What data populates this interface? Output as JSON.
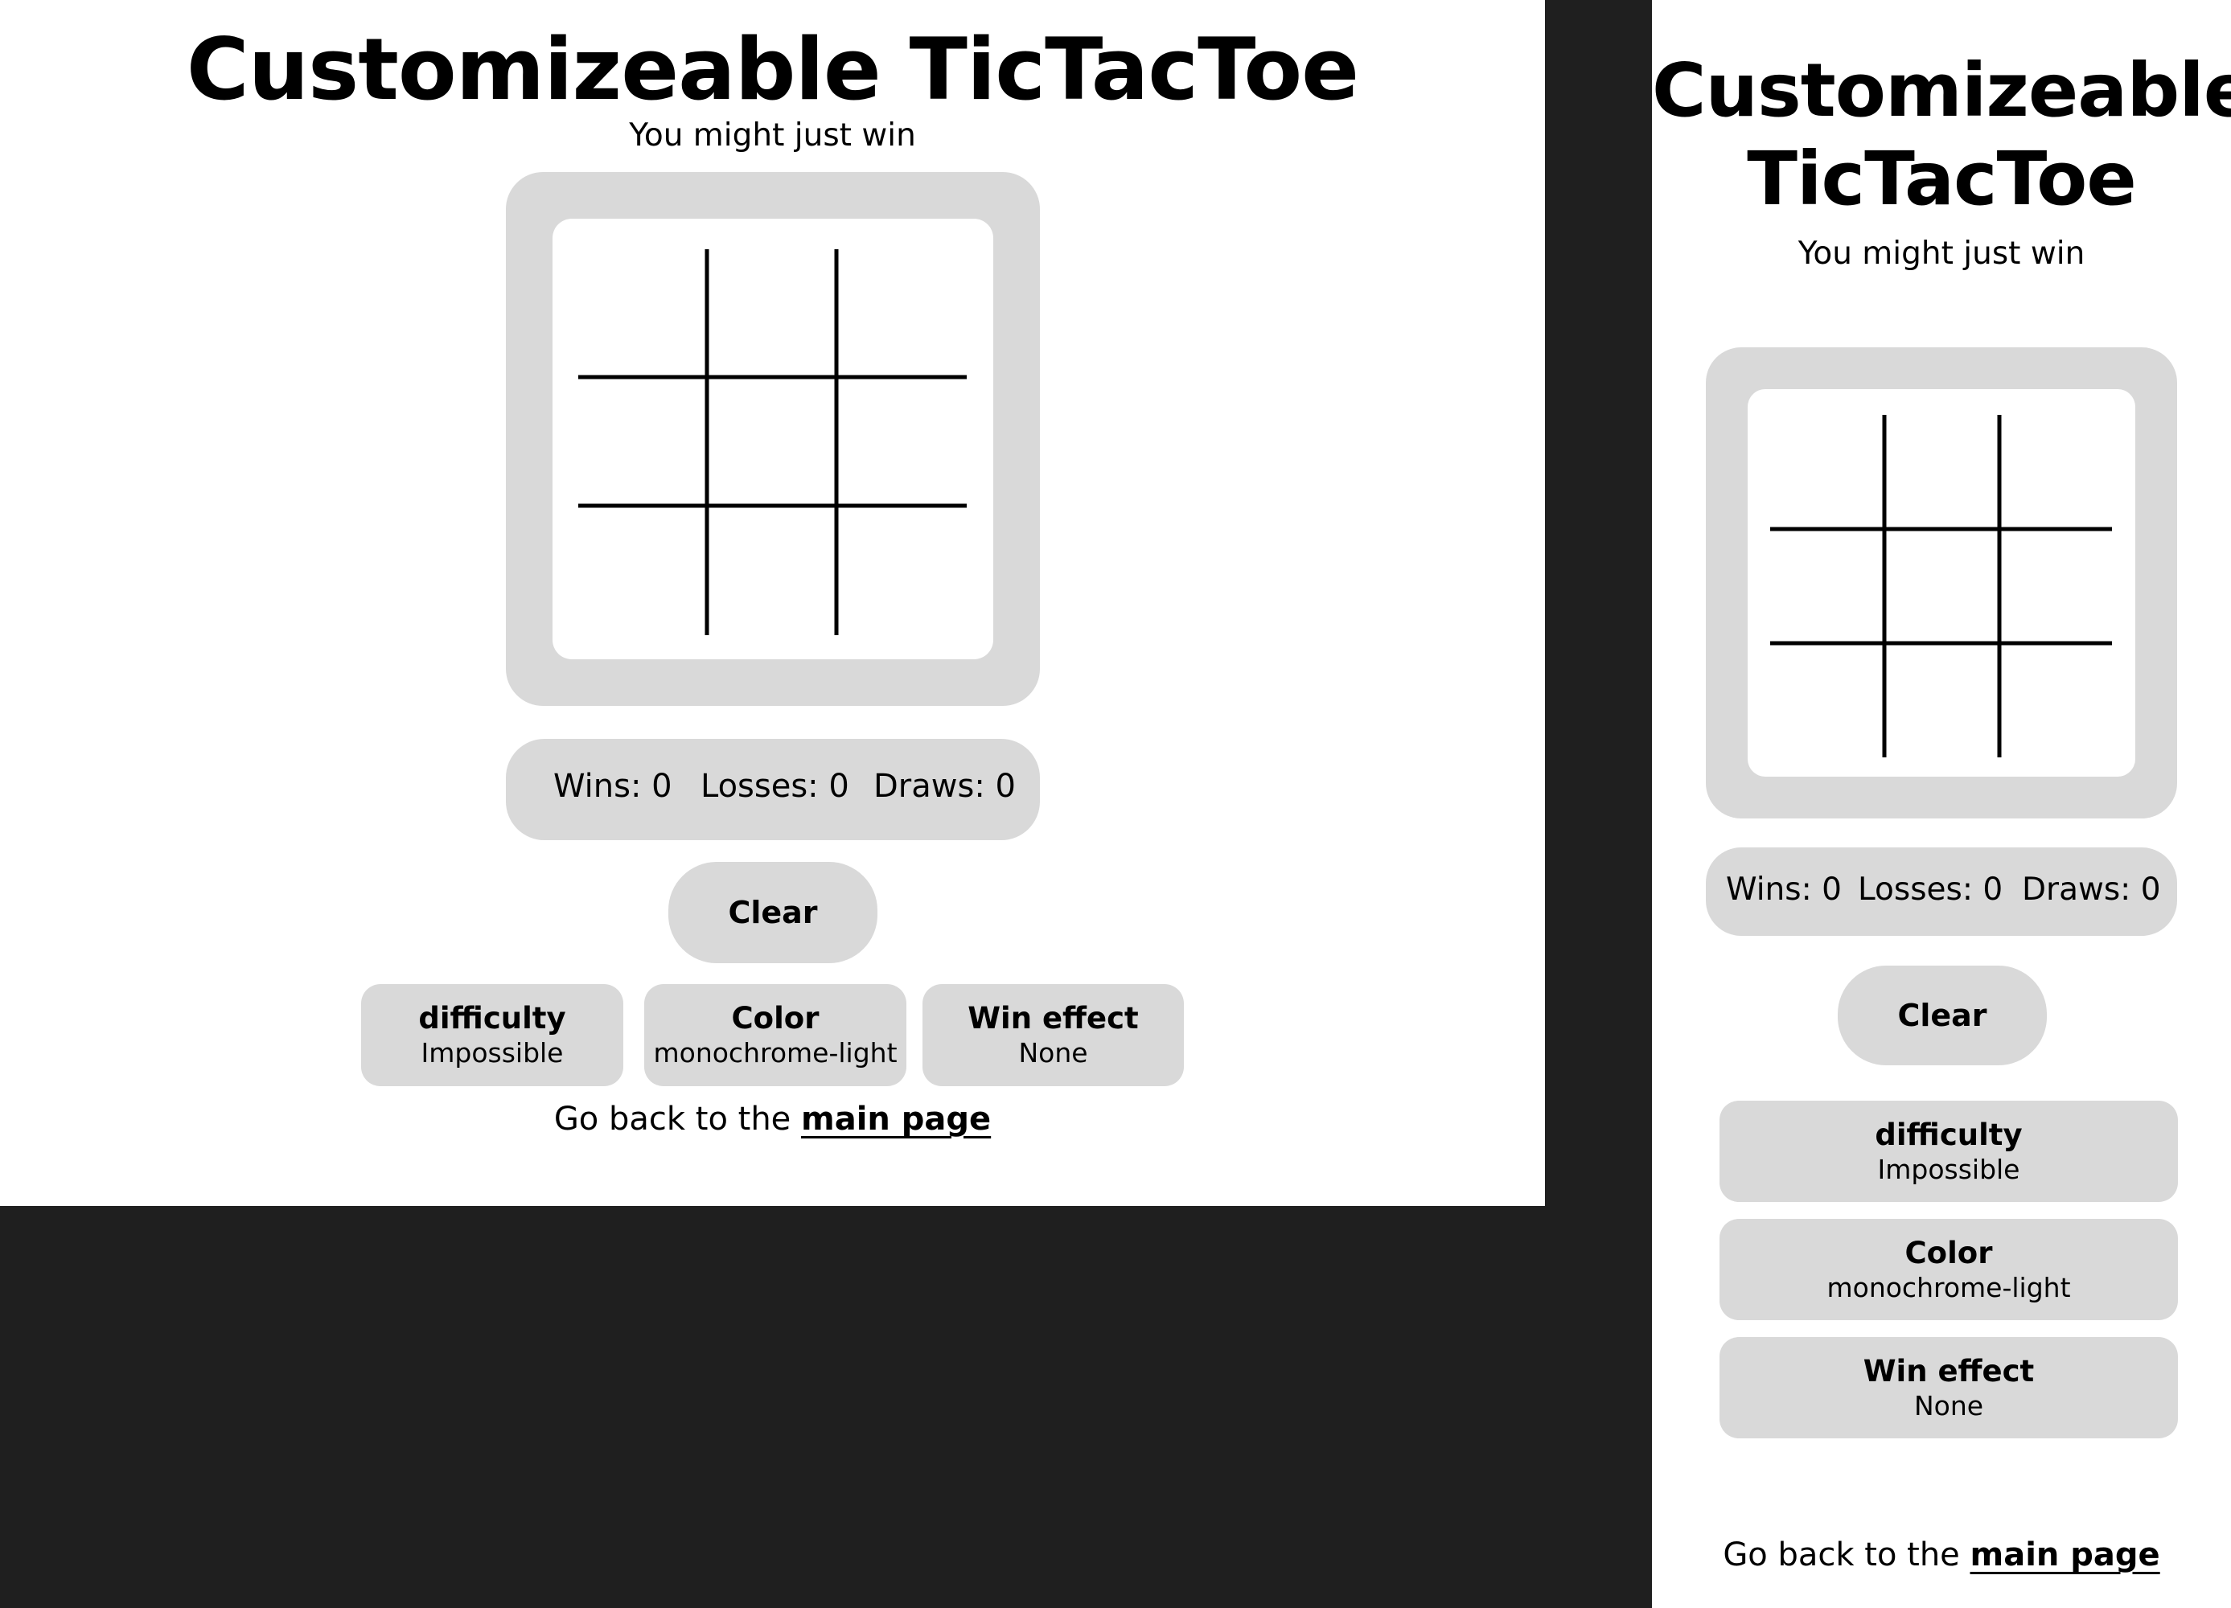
{
  "app": {
    "title": "Customizeable TicTacToe",
    "title_line1": "Customizeable",
    "title_line2": "TicTacToe",
    "subtitle": "You might just win"
  },
  "board": {
    "cells": [
      "",
      "",
      "",
      "",
      "",
      "",
      "",
      "",
      ""
    ]
  },
  "stats": {
    "wins": "Wins: 0",
    "losses": "Losses: 0",
    "draws": "Draws: 0"
  },
  "actions": {
    "clear_label": "Clear"
  },
  "options": [
    {
      "label": "difficulty",
      "value": "Impossible"
    },
    {
      "label": "Color",
      "value": "monochrome-light"
    },
    {
      "label": "Win effect",
      "value": "None"
    }
  ],
  "footer": {
    "text": "Go back to the",
    "link_label": "main page"
  },
  "colors": {
    "panel": "#d9d9d9",
    "page": "#ffffff",
    "backdrop": "#1f1f1f",
    "ink": "#000000"
  }
}
